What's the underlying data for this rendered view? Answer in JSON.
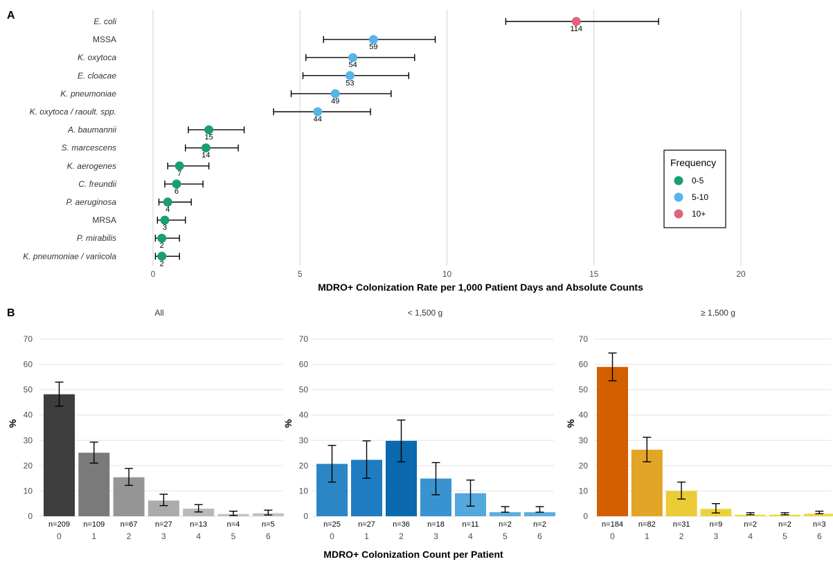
{
  "chart_data": [
    {
      "panel_label": "A",
      "type": "scatter",
      "xlabel": "MDRO+ Colonization Rate per 1,000 Patient Days and Absolute Counts",
      "ylabel": "",
      "xlim": [
        0,
        20
      ],
      "xticks": [
        "0",
        "5",
        "10",
        "15",
        "20"
      ],
      "grid": "vertical major gridlines",
      "legend": {
        "title": "Frequency",
        "placement": "right",
        "entries": [
          {
            "label": "0-5",
            "color": "#1a9e77"
          },
          {
            "label": "5-10",
            "color": "#56b4e9"
          },
          {
            "label": "10+",
            "color": "#e0637a"
          }
        ]
      },
      "points": [
        {
          "label": "E. coli",
          "italic": true,
          "rate": 14.4,
          "lower": 12.0,
          "upper": 17.2,
          "count": "114",
          "group": "10+"
        },
        {
          "label": "MSSA",
          "italic": false,
          "rate": 7.5,
          "lower": 5.8,
          "upper": 9.6,
          "count": "59",
          "group": "5-10"
        },
        {
          "label": "K. oxytoca",
          "italic": true,
          "rate": 6.8,
          "lower": 5.2,
          "upper": 8.9,
          "count": "54",
          "group": "5-10"
        },
        {
          "label": "E. cloacae",
          "italic": true,
          "rate": 6.7,
          "lower": 5.1,
          "upper": 8.7,
          "count": "53",
          "group": "5-10"
        },
        {
          "label": "K. pneumoniae",
          "italic": true,
          "rate": 6.2,
          "lower": 4.7,
          "upper": 8.1,
          "count": "49",
          "group": "5-10"
        },
        {
          "label": "K. oxytoca / raoult. spp.",
          "italic": true,
          "rate": 5.6,
          "lower": 4.1,
          "upper": 7.4,
          "count": "44",
          "group": "5-10"
        },
        {
          "label": "A. baumannii",
          "italic": true,
          "rate": 1.9,
          "lower": 1.2,
          "upper": 3.1,
          "count": "15",
          "group": "0-5"
        },
        {
          "label": "S. marcescens",
          "italic": true,
          "rate": 1.8,
          "lower": 1.1,
          "upper": 2.9,
          "count": "14",
          "group": "0-5"
        },
        {
          "label": "K. aerogenes",
          "italic": true,
          "rate": 0.9,
          "lower": 0.5,
          "upper": 1.9,
          "count": "7",
          "group": "0-5"
        },
        {
          "label": "C. freundii",
          "italic": true,
          "rate": 0.8,
          "lower": 0.4,
          "upper": 1.7,
          "count": "6",
          "group": "0-5"
        },
        {
          "label": "P. aeruginosa",
          "italic": true,
          "rate": 0.5,
          "lower": 0.2,
          "upper": 1.3,
          "count": "4",
          "group": "0-5"
        },
        {
          "label": "MRSA",
          "italic": false,
          "rate": 0.4,
          "lower": 0.15,
          "upper": 1.1,
          "count": "3",
          "group": "0-5"
        },
        {
          "label": "P. mirabilis",
          "italic": true,
          "rate": 0.3,
          "lower": 0.08,
          "upper": 0.9,
          "count": "2",
          "group": "0-5"
        },
        {
          "label": "K. pneumoniae / variicola",
          "italic": true,
          "rate": 0.3,
          "lower": 0.08,
          "upper": 0.9,
          "count": "2",
          "group": "0-5"
        }
      ]
    },
    {
      "panel_label": "B",
      "type": "bar",
      "xlabel": "MDRO+ Colonization Count per Patient",
      "ylabel": "%",
      "ylim": [
        0,
        70
      ],
      "yticks": [
        "0",
        "10",
        "20",
        "30",
        "40",
        "50",
        "60",
        "70"
      ],
      "grid": "horizontal major gridlines",
      "facets": [
        {
          "title": "All",
          "categories": [
            "0",
            "1",
            "2",
            "3",
            "4",
            "5",
            "6"
          ],
          "values": [
            48.2,
            25.1,
            15.4,
            6.2,
            3.0,
            0.9,
            1.2
          ],
          "err_low": [
            43.5,
            21.0,
            12.2,
            4.2,
            1.7,
            0.3,
            0.5
          ],
          "err_high": [
            53.0,
            29.3,
            18.9,
            8.7,
            4.6,
            2.0,
            2.4
          ],
          "n_labels": [
            "n=209",
            "n=109",
            "n=67",
            "n=27",
            "n=13",
            "n=4",
            "n=5"
          ],
          "colors": [
            "#3d3d3d",
            "#7a7a7a",
            "#959595",
            "#ababab",
            "#b9b9b9",
            "#c3c3c3",
            "#c3c3c3"
          ]
        },
        {
          "title": "< 1,500 g",
          "categories": [
            "0",
            "1",
            "2",
            "3",
            "4",
            "5",
            "6"
          ],
          "values": [
            20.7,
            22.3,
            29.8,
            14.9,
            9.1,
            1.6,
            1.6
          ],
          "err_low": [
            13.5,
            15.0,
            21.5,
            8.5,
            4.0,
            1.6,
            1.6
          ],
          "err_high": [
            28.0,
            29.8,
            38.0,
            21.2,
            14.3,
            3.8,
            3.8
          ],
          "n_labels": [
            "n=25",
            "n=27",
            "n=36",
            "n=18",
            "n=11",
            "n=2",
            "n=2"
          ],
          "colors": [
            "#2c85c5",
            "#1f7cc0",
            "#0a6aad",
            "#3a93d1",
            "#53a8dd",
            "#5aafe2",
            "#5aafe2"
          ]
        },
        {
          "title": "≥ 1,500 g",
          "categories": [
            "0",
            "1",
            "2",
            "3",
            "4",
            "5",
            "6"
          ],
          "values": [
            59.0,
            26.3,
            10.0,
            2.9,
            0.6,
            0.6,
            1.0
          ],
          "err_low": [
            53.5,
            21.5,
            6.8,
            1.3,
            0.6,
            0.6,
            1.0
          ],
          "err_high": [
            64.5,
            31.2,
            13.5,
            5.0,
            1.4,
            1.4,
            2.0
          ],
          "n_labels": [
            "n=184",
            "n=82",
            "n=31",
            "n=9",
            "n=2",
            "n=2",
            "n=3"
          ],
          "colors": [
            "#d35f00",
            "#e2a526",
            "#ebcb36",
            "#ecd23a",
            "#efd845",
            "#efd845",
            "#efd845"
          ]
        }
      ]
    }
  ]
}
